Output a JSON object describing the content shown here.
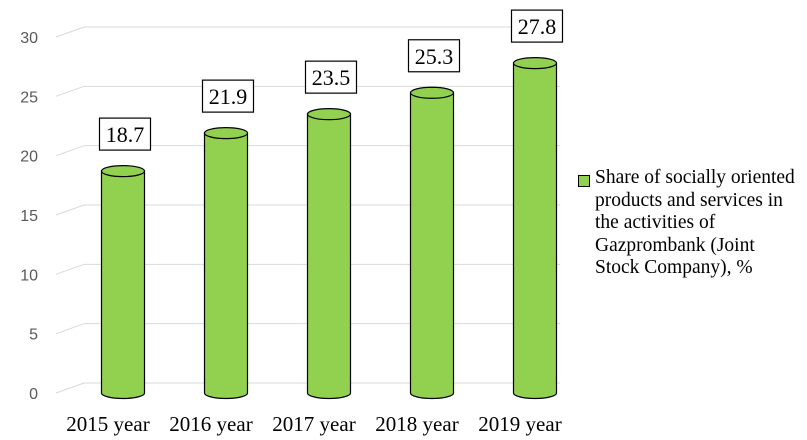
{
  "chart_data": {
    "type": "bar",
    "style": "3d-cylinder",
    "categories": [
      "2015 year",
      "2016 year",
      "2017 year",
      "2018 year",
      "2019 year"
    ],
    "series": [
      {
        "name": "Share of socially oriented products and services in the activities of Gazprombank (Joint Stock Company), %",
        "values": [
          18.7,
          21.9,
          23.5,
          25.3,
          27.8
        ],
        "color": "#92d050"
      }
    ],
    "yticks": [
      0,
      5,
      10,
      15,
      20,
      25,
      30
    ],
    "ylim": [
      0,
      30
    ],
    "grid": true,
    "legend_position": "right",
    "colors": {
      "bar": "#92d050",
      "bar_outline": "#000000",
      "grid": "#d9d9d9",
      "tick_text": "#595959"
    }
  }
}
